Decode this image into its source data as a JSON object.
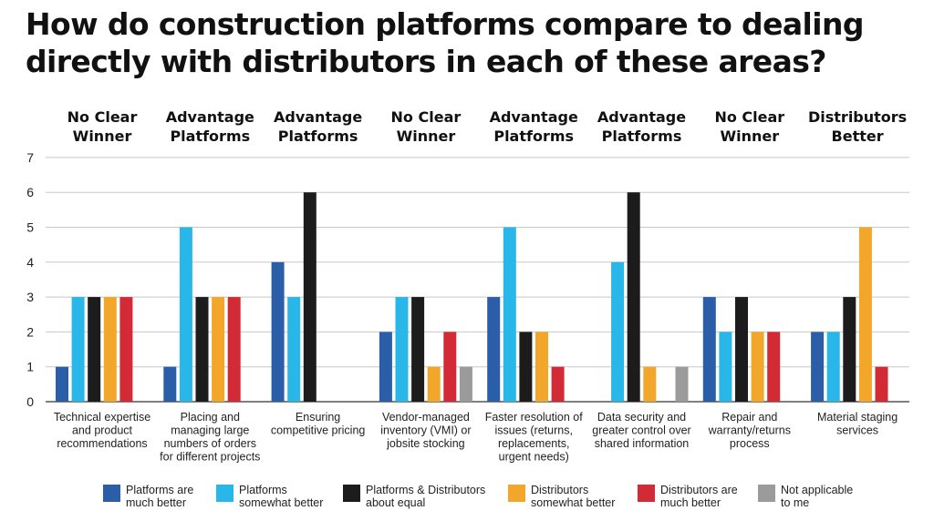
{
  "title": "How do construction platforms compare to dealing directly with distributors in each of these areas?",
  "chart_data": {
    "type": "bar",
    "title": "How do construction platforms compare to dealing directly with distributors in each of these areas?",
    "ylim": [
      0,
      7
    ],
    "yticks": [
      0,
      1,
      2,
      3,
      4,
      5,
      6,
      7
    ],
    "grid": true,
    "legend_position": "bottom",
    "categories": [
      {
        "lines": [
          "Technical expertise",
          "and product",
          "recommendations"
        ],
        "verdict": [
          "No Clear",
          "Winner"
        ]
      },
      {
        "lines": [
          "Placing and",
          "managing large",
          "numbers of orders",
          "for different projects"
        ],
        "verdict": [
          "Advantage",
          "Platforms"
        ]
      },
      {
        "lines": [
          "Ensuring",
          "competitive pricing"
        ],
        "verdict": [
          "Advantage",
          "Platforms"
        ]
      },
      {
        "lines": [
          "Vendor-managed",
          "inventory (VMI) or",
          "jobsite stocking"
        ],
        "verdict": [
          "No Clear",
          "Winner"
        ]
      },
      {
        "lines": [
          "Faster resolution of",
          "issues (returns,",
          "replacements,",
          "urgent needs)"
        ],
        "verdict": [
          "Advantage",
          "Platforms"
        ]
      },
      {
        "lines": [
          "Data security and",
          "greater control over",
          "shared information"
        ],
        "verdict": [
          "Advantage",
          "Platforms"
        ]
      },
      {
        "lines": [
          "Repair and",
          "warranty/returns",
          "process"
        ],
        "verdict": [
          "No Clear",
          "Winner"
        ]
      },
      {
        "lines": [
          "Material staging",
          "services"
        ],
        "verdict": [
          "Distributors",
          "Better"
        ]
      }
    ],
    "series": [
      {
        "name": [
          "Platforms are",
          "much better"
        ],
        "color": "#2a5ea8",
        "values": [
          1,
          1,
          4,
          2,
          3,
          0,
          3,
          2
        ]
      },
      {
        "name": [
          "Platforms",
          "somewhat better"
        ],
        "color": "#29b6e8",
        "values": [
          3,
          5,
          3,
          3,
          5,
          4,
          2,
          2
        ]
      },
      {
        "name": [
          "Platforms & Distributors",
          "about equal"
        ],
        "color": "#1c1c1c",
        "values": [
          3,
          3,
          6,
          3,
          2,
          6,
          3,
          3
        ]
      },
      {
        "name": [
          "Distributors",
          "somewhat better"
        ],
        "color": "#f2a72b",
        "values": [
          3,
          3,
          0,
          1,
          2,
          1,
          2,
          5
        ]
      },
      {
        "name": [
          "Distributors are",
          "much better"
        ],
        "color": "#d22b35",
        "values": [
          3,
          3,
          0,
          2,
          1,
          0,
          2,
          1
        ]
      },
      {
        "name": [
          "Not applicable",
          "to me"
        ],
        "color": "#9b9b9b",
        "values": [
          0,
          0,
          0,
          1,
          0,
          1,
          0,
          0
        ]
      }
    ]
  }
}
